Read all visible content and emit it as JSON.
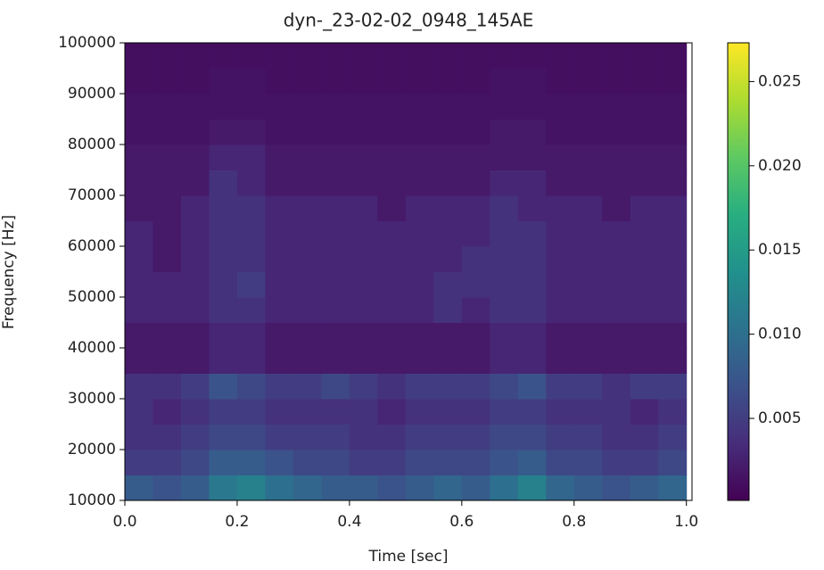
{
  "chart_data": {
    "type": "heatmap",
    "title": "dyn-_23-02-02_0948_145AE",
    "x_label": "Time [sec]",
    "y_label": "Frequency [Hz]",
    "colormap": "viridis",
    "x_edges": [
      0,
      0.05,
      0.1,
      0.15,
      0.2,
      0.25,
      0.3,
      0.35,
      0.4,
      0.45,
      0.5,
      0.55,
      0.6,
      0.65,
      0.7,
      0.75,
      0.8,
      0.85,
      0.9,
      0.95,
      1.0
    ],
    "y_edges": [
      10000,
      15000,
      20000,
      25000,
      30000,
      35000,
      40000,
      45000,
      50000,
      55000,
      60000,
      65000,
      70000,
      75000,
      80000,
      85000,
      90000,
      95000,
      100000
    ],
    "z": [
      [
        0.008,
        0.007,
        0.008,
        0.011,
        0.012,
        0.01,
        0.009,
        0.008,
        0.008,
        0.007,
        0.008,
        0.009,
        0.008,
        0.01,
        0.012,
        0.009,
        0.008,
        0.007,
        0.008,
        0.009
      ],
      [
        0.005,
        0.005,
        0.006,
        0.008,
        0.008,
        0.007,
        0.006,
        0.006,
        0.005,
        0.005,
        0.006,
        0.006,
        0.006,
        0.007,
        0.008,
        0.006,
        0.006,
        0.005,
        0.005,
        0.006
      ],
      [
        0.004,
        0.004,
        0.005,
        0.006,
        0.006,
        0.005,
        0.005,
        0.005,
        0.004,
        0.004,
        0.005,
        0.005,
        0.005,
        0.006,
        0.006,
        0.005,
        0.005,
        0.004,
        0.004,
        0.005
      ],
      [
        0.004,
        0.003,
        0.004,
        0.005,
        0.005,
        0.004,
        0.004,
        0.004,
        0.004,
        0.003,
        0.004,
        0.004,
        0.004,
        0.005,
        0.005,
        0.004,
        0.004,
        0.004,
        0.003,
        0.004
      ],
      [
        0.004,
        0.004,
        0.005,
        0.007,
        0.006,
        0.005,
        0.005,
        0.006,
        0.005,
        0.004,
        0.005,
        0.005,
        0.005,
        0.006,
        0.007,
        0.005,
        0.005,
        0.004,
        0.005,
        0.005
      ],
      [
        0.002,
        0.002,
        0.002,
        0.003,
        0.003,
        0.002,
        0.002,
        0.002,
        0.002,
        0.002,
        0.002,
        0.002,
        0.002,
        0.003,
        0.003,
        0.002,
        0.002,
        0.002,
        0.002,
        0.002
      ],
      [
        0.002,
        0.002,
        0.002,
        0.003,
        0.003,
        0.002,
        0.002,
        0.002,
        0.002,
        0.002,
        0.002,
        0.002,
        0.002,
        0.003,
        0.003,
        0.002,
        0.002,
        0.002,
        0.002,
        0.002
      ],
      [
        0.003,
        0.003,
        0.003,
        0.004,
        0.004,
        0.003,
        0.003,
        0.003,
        0.003,
        0.003,
        0.003,
        0.004,
        0.003,
        0.004,
        0.004,
        0.003,
        0.003,
        0.003,
        0.003,
        0.003
      ],
      [
        0.003,
        0.003,
        0.003,
        0.004,
        0.005,
        0.003,
        0.003,
        0.003,
        0.003,
        0.003,
        0.003,
        0.004,
        0.004,
        0.004,
        0.004,
        0.003,
        0.003,
        0.003,
        0.003,
        0.003
      ],
      [
        0.003,
        0.002,
        0.003,
        0.004,
        0.004,
        0.003,
        0.003,
        0.003,
        0.003,
        0.003,
        0.003,
        0.003,
        0.004,
        0.004,
        0.004,
        0.003,
        0.003,
        0.003,
        0.003,
        0.003
      ],
      [
        0.003,
        0.002,
        0.003,
        0.004,
        0.004,
        0.003,
        0.003,
        0.003,
        0.003,
        0.003,
        0.003,
        0.003,
        0.003,
        0.004,
        0.004,
        0.003,
        0.003,
        0.003,
        0.003,
        0.003
      ],
      [
        0.002,
        0.002,
        0.003,
        0.004,
        0.004,
        0.003,
        0.003,
        0.003,
        0.003,
        0.002,
        0.003,
        0.003,
        0.003,
        0.004,
        0.003,
        0.003,
        0.003,
        0.002,
        0.003,
        0.003
      ],
      [
        0.002,
        0.002,
        0.002,
        0.004,
        0.003,
        0.002,
        0.002,
        0.002,
        0.002,
        0.002,
        0.002,
        0.002,
        0.002,
        0.003,
        0.003,
        0.002,
        0.002,
        0.002,
        0.002,
        0.002
      ],
      [
        0.002,
        0.002,
        0.002,
        0.003,
        0.003,
        0.002,
        0.002,
        0.002,
        0.002,
        0.002,
        0.002,
        0.002,
        0.002,
        0.002,
        0.002,
        0.002,
        0.002,
        0.002,
        0.002,
        0.002
      ],
      [
        0.0015,
        0.0015,
        0.0015,
        0.002,
        0.002,
        0.0015,
        0.0015,
        0.0015,
        0.0015,
        0.0015,
        0.0015,
        0.0015,
        0.0015,
        0.002,
        0.002,
        0.0015,
        0.0015,
        0.0015,
        0.0015,
        0.0015
      ],
      [
        0.0015,
        0.0015,
        0.0015,
        0.0015,
        0.0015,
        0.0015,
        0.0015,
        0.0015,
        0.0015,
        0.0015,
        0.0015,
        0.0015,
        0.0015,
        0.0015,
        0.0015,
        0.0015,
        0.0015,
        0.0015,
        0.0015,
        0.0015
      ],
      [
        0.0012,
        0.0012,
        0.0012,
        0.0015,
        0.0015,
        0.0012,
        0.0012,
        0.0012,
        0.0012,
        0.0012,
        0.0012,
        0.0012,
        0.0012,
        0.0015,
        0.0015,
        0.0012,
        0.0012,
        0.0012,
        0.0012,
        0.0012
      ],
      [
        0.0012,
        0.0012,
        0.0012,
        0.0012,
        0.0012,
        0.0012,
        0.0012,
        0.0012,
        0.0012,
        0.0012,
        0.0012,
        0.0012,
        0.0012,
        0.0012,
        0.0012,
        0.0012,
        0.0012,
        0.0012,
        0.0012,
        0.0012
      ]
    ],
    "xlim": [
      0,
      1.01
    ],
    "ylim": [
      10000,
      100000
    ],
    "clim": [
      0.00013,
      0.0273
    ],
    "xticks": [
      {
        "value": 0,
        "label": "0.0"
      },
      0.2,
      0.4,
      0.6,
      0.8,
      {
        "value": 1,
        "label": "1.0"
      }
    ],
    "yticks": [
      10000,
      20000,
      30000,
      40000,
      50000,
      60000,
      70000,
      80000,
      90000,
      100000
    ],
    "cticks": [
      0.005,
      {
        "value": 0.01,
        "label": "0.010"
      },
      0.015,
      {
        "value": 0.02,
        "label": "0.020"
      },
      0.025
    ]
  }
}
